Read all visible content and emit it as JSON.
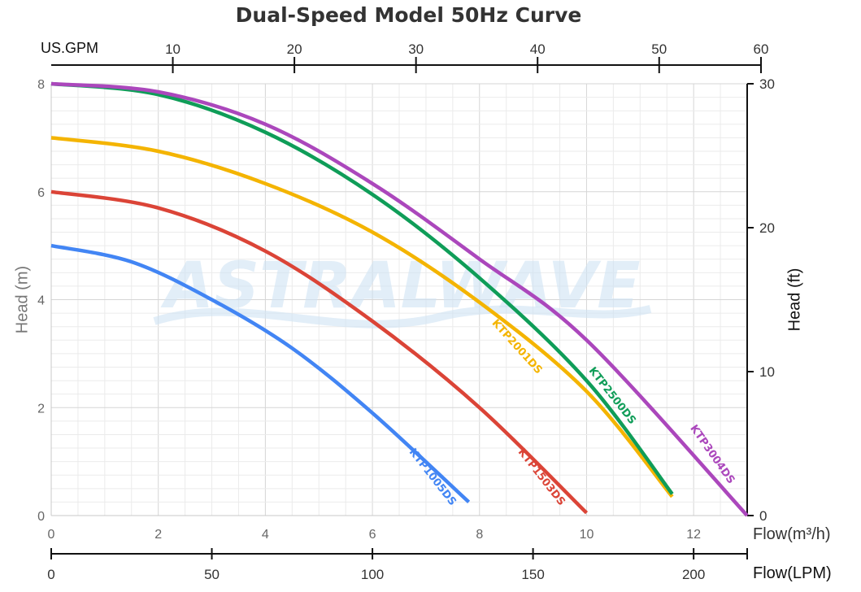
{
  "chart_data": {
    "type": "line",
    "title": "Dual-Speed Model 50Hz Curve",
    "x_axis_primary": {
      "label": "Flow(m³/h)",
      "min": 0,
      "max": 13,
      "ticks": [
        "0",
        "2",
        "4",
        "6",
        "8",
        "10",
        "12"
      ]
    },
    "x_axis_lpm": {
      "label": "Flow(LPM)",
      "ticks": [
        "0",
        "50",
        "100",
        "150",
        "200"
      ]
    },
    "x_axis_gpm": {
      "label": "US.GPM",
      "ticks": [
        "10",
        "20",
        "30",
        "40",
        "50",
        "60"
      ]
    },
    "y_axis_left": {
      "label": "Head (m)",
      "min": 0,
      "max": 8,
      "ticks": [
        "0",
        "2",
        "4",
        "6",
        "8"
      ]
    },
    "y_axis_right": {
      "label": "Head (ft)",
      "min": 0,
      "max": 30,
      "ticks": [
        "0",
        "10",
        "20",
        "30"
      ]
    },
    "watermark": "ASTRALWAVE",
    "series": [
      {
        "name": "KTP1005DS",
        "color": "#4285F4",
        "x": [
          0,
          1.5,
          3,
          4.5,
          6,
          7.8
        ],
        "y": [
          5.0,
          4.7,
          4.0,
          3.1,
          1.9,
          0.25
        ]
      },
      {
        "name": "KTP1503DS",
        "color": "#DB4437",
        "x": [
          0,
          2,
          4,
          6,
          8,
          10
        ],
        "y": [
          6.0,
          5.7,
          4.9,
          3.6,
          2.0,
          0.05
        ]
      },
      {
        "name": "KTP2001DS",
        "color": "#F4B400",
        "x": [
          0,
          2,
          4,
          6,
          8,
          10,
          11.6
        ],
        "y": [
          7.0,
          6.75,
          6.15,
          5.25,
          3.95,
          2.3,
          0.35
        ]
      },
      {
        "name": "KTP2500DS",
        "color": "#0F9D58",
        "x": [
          0,
          2,
          4,
          6,
          8,
          10,
          11.6
        ],
        "y": [
          8.0,
          7.8,
          7.1,
          5.95,
          4.4,
          2.5,
          0.4
        ]
      },
      {
        "name": "KTP3004DS",
        "color": "#AB47BC",
        "x": [
          0,
          2,
          4,
          6,
          8,
          10,
          13
        ],
        "y": [
          8.0,
          7.85,
          7.25,
          6.15,
          4.75,
          3.25,
          0.0
        ]
      }
    ]
  }
}
